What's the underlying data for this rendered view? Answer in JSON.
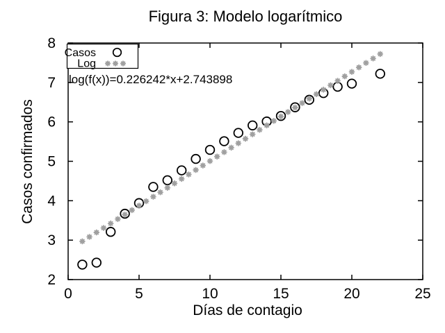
{
  "window": {
    "background": "#ffffff",
    "foreground": "#000000"
  },
  "chart_data": {
    "type": "scatter",
    "title": "Figura 3: Modelo logarítmico",
    "xlabel": "Días de contagio",
    "ylabel": "Casos confirmados",
    "xlim": [
      0,
      25
    ],
    "ylim": [
      2,
      8
    ],
    "xticks": [
      0,
      5,
      10,
      15,
      20,
      25
    ],
    "yticks": [
      2,
      3,
      4,
      5,
      6,
      7,
      8
    ],
    "grid": false,
    "legend_position": "top-left",
    "annotation": "log(f(x))=0.226242*x+2.743898",
    "series": [
      {
        "name": "Casos",
        "type": "points",
        "marker": "open-circle",
        "color": "#000000",
        "points": [
          [
            1,
            2.38
          ],
          [
            2,
            2.43
          ],
          [
            3,
            3.21
          ],
          [
            4,
            3.67
          ],
          [
            5,
            3.94
          ],
          [
            6,
            4.35
          ],
          [
            7,
            4.52
          ],
          [
            8,
            4.77
          ],
          [
            9,
            5.06
          ],
          [
            10,
            5.29
          ],
          [
            11,
            5.51
          ],
          [
            12,
            5.72
          ],
          [
            13,
            5.91
          ],
          [
            14,
            6.01
          ],
          [
            15,
            6.15
          ],
          [
            16,
            6.37
          ],
          [
            17,
            6.56
          ],
          [
            18,
            6.73
          ],
          [
            19,
            6.89
          ],
          [
            20,
            6.97
          ],
          [
            22,
            7.22
          ]
        ]
      },
      {
        "name": "Log",
        "type": "function-samples",
        "marker": "asterisk",
        "color": "#a0a0a0",
        "equation": {
          "slope": 0.226242,
          "intercept": 2.743898
        },
        "x_start": 1,
        "x_end": 22,
        "x_step": 0.5
      }
    ]
  }
}
